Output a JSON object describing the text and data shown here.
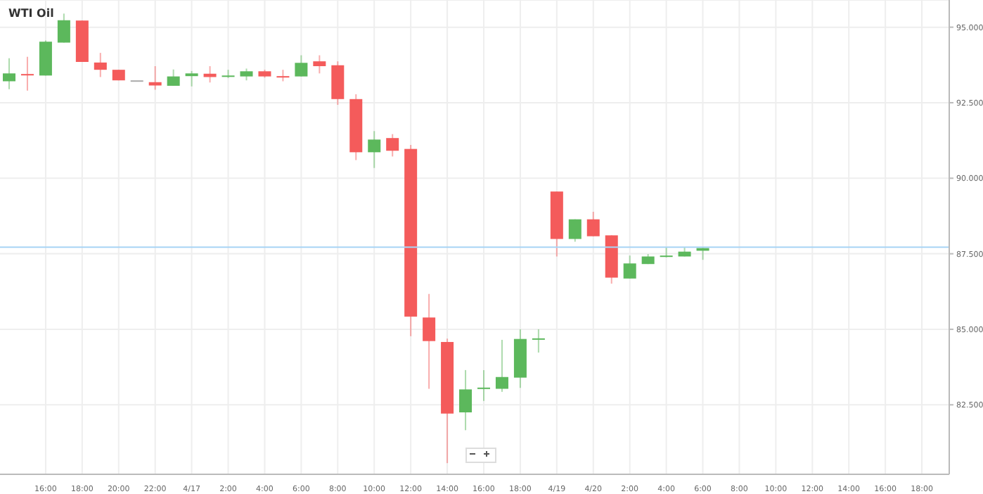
{
  "chart_data": {
    "type": "candlestick",
    "title": "WTI Oil",
    "categories": [
      null,
      null,
      "16:00",
      null,
      "18:00",
      null,
      "20:00",
      null,
      "22:00",
      null,
      "4/17",
      null,
      "2:00",
      null,
      "4:00",
      null,
      "6:00",
      null,
      "8:00",
      null,
      "10:00",
      null,
      "12:00",
      null,
      "14:00",
      null,
      "16:00",
      null,
      "18:00",
      null,
      "4/19",
      null,
      "4/20",
      null,
      "2:00",
      null,
      "4:00",
      null,
      "6:00",
      null,
      "8:00",
      null,
      "10:00",
      null,
      "12:00",
      null,
      "14:00",
      null,
      "16:00",
      null,
      "18:00",
      null
    ],
    "ohlc": [
      [
        93.21,
        93.97,
        92.95,
        93.47
      ],
      [
        93.45,
        94.02,
        92.9,
        93.42
      ],
      [
        93.4,
        94.56,
        93.4,
        94.52
      ],
      [
        94.49,
        95.45,
        94.49,
        95.23
      ],
      [
        95.22,
        95.22,
        93.85,
        93.85
      ],
      [
        93.83,
        94.15,
        93.35,
        93.59
      ],
      [
        93.59,
        93.59,
        93.24,
        93.24
      ],
      [
        93.24,
        93.24,
        93.24,
        93.24
      ],
      [
        93.18,
        93.71,
        92.93,
        93.07
      ],
      [
        93.06,
        93.6,
        93.06,
        93.37
      ],
      [
        93.38,
        93.55,
        93.04,
        93.47
      ],
      [
        93.46,
        93.71,
        93.17,
        93.35
      ],
      [
        93.37,
        93.59,
        93.32,
        93.4
      ],
      [
        93.37,
        93.63,
        93.24,
        93.54
      ],
      [
        93.54,
        93.59,
        93.33,
        93.37
      ],
      [
        93.38,
        93.59,
        93.21,
        93.36
      ],
      [
        93.37,
        94.07,
        93.37,
        93.82
      ],
      [
        93.87,
        94.07,
        93.47,
        93.71
      ],
      [
        93.74,
        93.87,
        92.43,
        92.62
      ],
      [
        92.62,
        92.78,
        90.6,
        90.86
      ],
      [
        90.86,
        91.56,
        90.34,
        91.28
      ],
      [
        91.33,
        91.46,
        90.72,
        90.91
      ],
      [
        90.97,
        91.1,
        84.77,
        85.42
      ],
      [
        85.39,
        86.17,
        83.03,
        84.61
      ],
      [
        84.58,
        84.69,
        80.57,
        82.21
      ],
      [
        82.25,
        83.65,
        81.66,
        83.01
      ],
      [
        83.05,
        83.65,
        82.63,
        83.07
      ],
      [
        83.03,
        84.65,
        82.93,
        83.42
      ],
      [
        83.4,
        85,
        83.06,
        84.68
      ],
      [
        84.7,
        85,
        84.23,
        84.69
      ],
      [
        89.56,
        89.56,
        87.41,
        87.99
      ],
      [
        87.99,
        88.64,
        87.9,
        88.64
      ],
      [
        88.64,
        88.89,
        88.08,
        88.08
      ],
      [
        88.11,
        88.11,
        86.51,
        86.71
      ],
      [
        86.68,
        87.44,
        86.68,
        87.18
      ],
      [
        87.16,
        87.49,
        87.16,
        87.41
      ],
      [
        87.42,
        87.72,
        87.38,
        87.44
      ],
      [
        87.41,
        87.72,
        87.41,
        87.57
      ],
      [
        87.6,
        87.72,
        87.3,
        87.69
      ],
      null,
      null,
      null,
      null,
      null,
      null,
      null,
      null,
      null,
      null,
      null,
      null,
      null
    ],
    "colors": [
      "#5cb85c",
      "#f45b5b",
      "#5cb85c",
      "#5cb85c",
      "#f45b5b",
      "#f45b5b",
      "#f45b5b",
      "#aaaaaa",
      "#f45b5b",
      "#5cb85c",
      "#5cb85c",
      "#f45b5b",
      "#5cb85c",
      "#5cb85c",
      "#f45b5b",
      "#f45b5b",
      "#5cb85c",
      "#f45b5b",
      "#f45b5b",
      "#f45b5b",
      "#5cb85c",
      "#f45b5b",
      "#f45b5b",
      "#f45b5b",
      "#f45b5b",
      "#5cb85c",
      "#5cb85c",
      "#5cb85c",
      "#5cb85c",
      "#5cb85c",
      "#f45b5b",
      "#5cb85c",
      "#f45b5b",
      "#f45b5b",
      "#5cb85c",
      "#5cb85c",
      "#5cb85c",
      "#5cb85c",
      "#5cb85c",
      null,
      null,
      null,
      null,
      null,
      null,
      null,
      null,
      null,
      null,
      null,
      null,
      null
    ],
    "ylim": [
      80.2,
      95.9
    ],
    "yticks": [
      {
        "value": 82.5,
        "label": "82.500"
      },
      {
        "value": 85,
        "label": "85.000"
      },
      {
        "value": 87.5,
        "label": "87.500"
      },
      {
        "value": 90,
        "label": "90.000"
      },
      {
        "value": 92.5,
        "label": "92.500"
      },
      {
        "value": 95,
        "label": "95.000"
      }
    ],
    "ref_lines": [
      {
        "axis": "y",
        "value": 87.72,
        "color": "#a8d4f5"
      }
    ],
    "grid": true
  }
}
